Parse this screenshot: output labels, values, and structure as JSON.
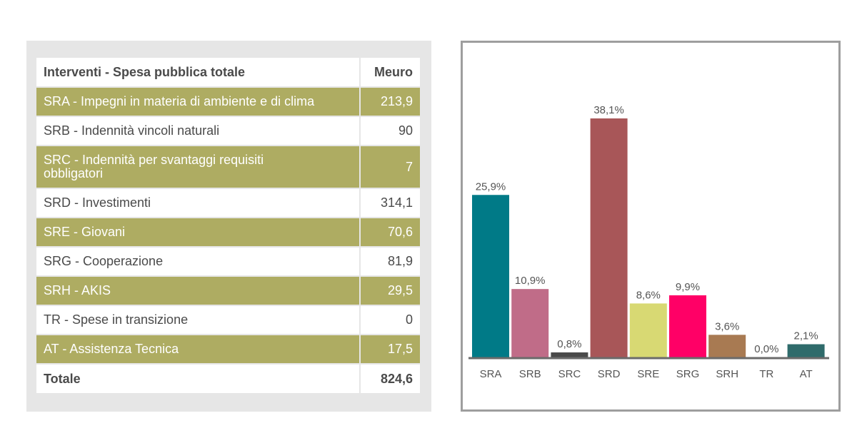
{
  "table": {
    "header": {
      "label": "Interventi - Spesa pubblica totale",
      "unit": "Meuro"
    },
    "rows": [
      {
        "label": "SRA - Impegni in materia di ambiente e di clima",
        "value": "213,9"
      },
      {
        "label": "SRB - Indennità vincoli naturali",
        "value": "90"
      },
      {
        "label": "SRC - Indennità per svantaggi requisiti obbligatori",
        "value": "7"
      },
      {
        "label": "SRD - Investimenti",
        "value": "314,1"
      },
      {
        "label": "SRE - Giovani",
        "value": "70,6"
      },
      {
        "label": "SRG - Cooperazione",
        "value": "81,9"
      },
      {
        "label": "SRH - AKIS",
        "value": "29,5"
      },
      {
        "label": "TR - Spese in transizione",
        "value": "0"
      },
      {
        "label": "AT - Assistenza Tecnica",
        "value": "17,5"
      }
    ],
    "total": {
      "label": "Totale",
      "value": "824,6"
    },
    "colors": {
      "highlight_row": "#aeac62",
      "plain_row": "#ffffff",
      "panel": "#e6e6e6"
    }
  },
  "chart_data": {
    "type": "bar",
    "categories": [
      "SRA",
      "SRB",
      "SRC",
      "SRD",
      "SRE",
      "SRG",
      "SRH",
      "TR",
      "AT"
    ],
    "values": [
      25.9,
      10.9,
      0.8,
      38.1,
      8.6,
      9.9,
      3.6,
      0.0,
      2.1
    ],
    "value_labels": [
      "25,9%",
      "10,9%",
      "0,8%",
      "38,1%",
      "8,6%",
      "9,9%",
      "3,6%",
      "0,0%",
      "2,1%"
    ],
    "colors": [
      "#007a87",
      "#c06c88",
      "#4a4a4a",
      "#a85658",
      "#d8d973",
      "#ff0066",
      "#a87a52",
      "#4a4a4a",
      "#2f6b6b"
    ],
    "ylim": [
      0,
      40
    ],
    "grid": false,
    "legend": "none",
    "title": "",
    "xlabel": "",
    "ylabel": ""
  }
}
